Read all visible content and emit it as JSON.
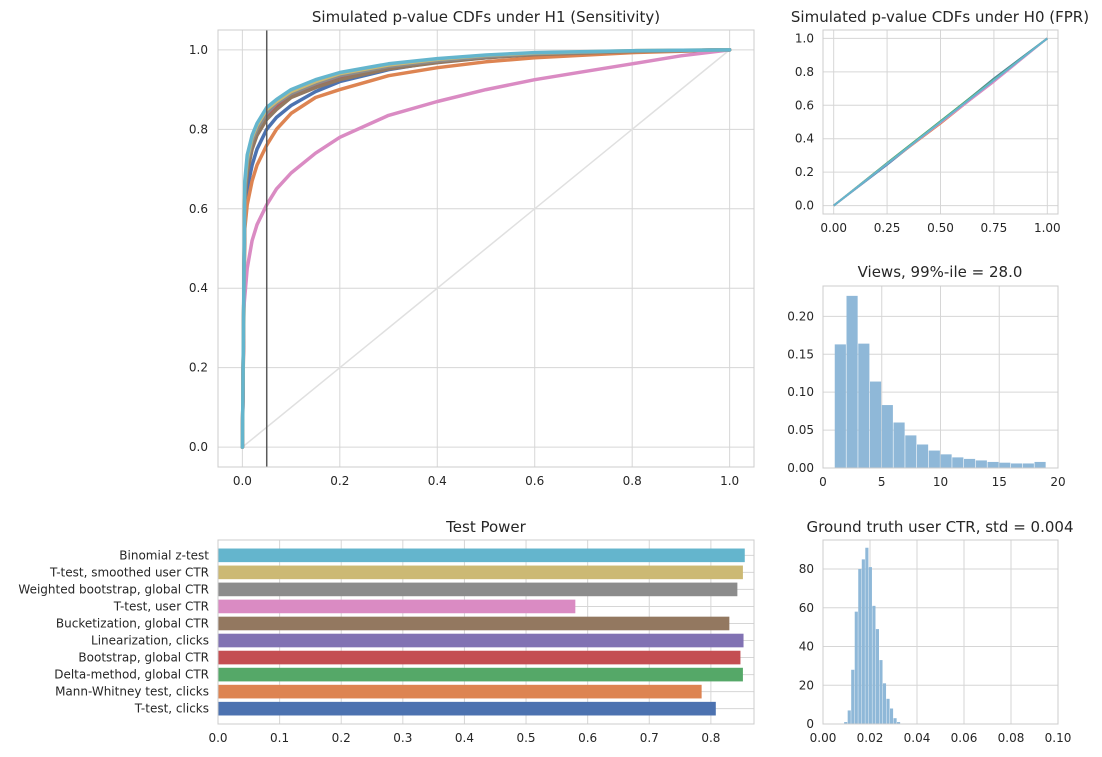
{
  "palette": [
    "#4c72b0",
    "#dd8452",
    "#55a868",
    "#c44e52",
    "#8172b3",
    "#937860",
    "#da8bc3",
    "#8c8c8c",
    "#ccb974",
    "#64b5cd"
  ],
  "chart_data": [
    {
      "type": "line",
      "title": "Simulated p-value CDFs under H1 (Sensitivity)",
      "xlim": [
        -0.05,
        1.05
      ],
      "ylim": [
        -0.05,
        1.05
      ],
      "xticks": [
        "0.0",
        "0.2",
        "0.4",
        "0.6",
        "0.8",
        "1.0"
      ],
      "yticks": [
        "0.0",
        "0.2",
        "0.4",
        "0.6",
        "0.8",
        "1.0"
      ],
      "grid": true,
      "vline_x": 0.05,
      "reference_diagonal": true,
      "series": [
        {
          "color": "#4c72b0",
          "points": [
            [
              0,
              0
            ],
            [
              0.005,
              0.58
            ],
            [
              0.01,
              0.65
            ],
            [
              0.02,
              0.71
            ],
            [
              0.03,
              0.75
            ],
            [
              0.05,
              0.8
            ],
            [
              0.07,
              0.83
            ],
            [
              0.1,
              0.86
            ],
            [
              0.15,
              0.895
            ],
            [
              0.2,
              0.92
            ],
            [
              0.3,
              0.95
            ],
            [
              0.4,
              0.97
            ],
            [
              0.5,
              0.98
            ],
            [
              0.6,
              0.99
            ],
            [
              0.8,
              0.997
            ],
            [
              1.0,
              1.0
            ]
          ]
        },
        {
          "color": "#dd8452",
          "points": [
            [
              0,
              0
            ],
            [
              0.005,
              0.55
            ],
            [
              0.01,
              0.61
            ],
            [
              0.02,
              0.67
            ],
            [
              0.03,
              0.71
            ],
            [
              0.05,
              0.76
            ],
            [
              0.07,
              0.8
            ],
            [
              0.1,
              0.84
            ],
            [
              0.15,
              0.88
            ],
            [
              0.2,
              0.9
            ],
            [
              0.3,
              0.935
            ],
            [
              0.4,
              0.955
            ],
            [
              0.5,
              0.97
            ],
            [
              0.6,
              0.98
            ],
            [
              0.8,
              0.993
            ],
            [
              1.0,
              1.0
            ]
          ]
        },
        {
          "color": "#55a868",
          "points": [
            [
              0,
              0
            ],
            [
              0.005,
              0.65
            ],
            [
              0.01,
              0.72
            ],
            [
              0.02,
              0.77
            ],
            [
              0.03,
              0.8
            ],
            [
              0.05,
              0.84
            ],
            [
              0.07,
              0.865
            ],
            [
              0.1,
              0.89
            ],
            [
              0.15,
              0.915
            ],
            [
              0.2,
              0.935
            ],
            [
              0.3,
              0.96
            ],
            [
              0.4,
              0.975
            ],
            [
              0.5,
              0.985
            ],
            [
              0.6,
              0.99
            ],
            [
              0.8,
              0.997
            ],
            [
              1.0,
              1.0
            ]
          ]
        },
        {
          "color": "#c44e52",
          "points": [
            [
              0,
              0
            ],
            [
              0.005,
              0.64
            ],
            [
              0.01,
              0.71
            ],
            [
              0.02,
              0.76
            ],
            [
              0.03,
              0.795
            ],
            [
              0.05,
              0.835
            ],
            [
              0.07,
              0.86
            ],
            [
              0.1,
              0.885
            ],
            [
              0.15,
              0.91
            ],
            [
              0.2,
              0.93
            ],
            [
              0.3,
              0.955
            ],
            [
              0.4,
              0.97
            ],
            [
              0.5,
              0.982
            ],
            [
              0.6,
              0.99
            ],
            [
              0.8,
              0.997
            ],
            [
              1.0,
              1.0
            ]
          ]
        },
        {
          "color": "#8172b3",
          "points": [
            [
              0,
              0
            ],
            [
              0.005,
              0.64
            ],
            [
              0.01,
              0.71
            ],
            [
              0.02,
              0.77
            ],
            [
              0.03,
              0.8
            ],
            [
              0.05,
              0.84
            ],
            [
              0.07,
              0.865
            ],
            [
              0.1,
              0.89
            ],
            [
              0.15,
              0.915
            ],
            [
              0.2,
              0.935
            ],
            [
              0.3,
              0.96
            ],
            [
              0.4,
              0.975
            ],
            [
              0.5,
              0.985
            ],
            [
              0.6,
              0.99
            ],
            [
              0.8,
              0.997
            ],
            [
              1.0,
              1.0
            ]
          ]
        },
        {
          "color": "#937860",
          "points": [
            [
              0,
              0
            ],
            [
              0.005,
              0.62
            ],
            [
              0.01,
              0.69
            ],
            [
              0.02,
              0.75
            ],
            [
              0.03,
              0.785
            ],
            [
              0.05,
              0.825
            ],
            [
              0.07,
              0.85
            ],
            [
              0.1,
              0.88
            ],
            [
              0.15,
              0.905
            ],
            [
              0.2,
              0.925
            ],
            [
              0.3,
              0.952
            ],
            [
              0.4,
              0.968
            ],
            [
              0.5,
              0.98
            ],
            [
              0.6,
              0.988
            ],
            [
              0.8,
              0.996
            ],
            [
              1.0,
              1.0
            ]
          ]
        },
        {
          "color": "#da8bc3",
          "points": [
            [
              0,
              0
            ],
            [
              0.003,
              0.35
            ],
            [
              0.01,
              0.45
            ],
            [
              0.02,
              0.52
            ],
            [
              0.03,
              0.56
            ],
            [
              0.05,
              0.61
            ],
            [
              0.07,
              0.65
            ],
            [
              0.1,
              0.69
            ],
            [
              0.15,
              0.74
            ],
            [
              0.2,
              0.78
            ],
            [
              0.3,
              0.835
            ],
            [
              0.4,
              0.87
            ],
            [
              0.5,
              0.9
            ],
            [
              0.6,
              0.925
            ],
            [
              0.7,
              0.945
            ],
            [
              0.8,
              0.965
            ],
            [
              0.9,
              0.985
            ],
            [
              1.0,
              1.0
            ]
          ]
        },
        {
          "color": "#8c8c8c",
          "points": [
            [
              0,
              0
            ],
            [
              0.005,
              0.64
            ],
            [
              0.01,
              0.715
            ],
            [
              0.02,
              0.77
            ],
            [
              0.03,
              0.8
            ],
            [
              0.05,
              0.84
            ],
            [
              0.07,
              0.865
            ],
            [
              0.1,
              0.89
            ],
            [
              0.15,
              0.915
            ],
            [
              0.2,
              0.935
            ],
            [
              0.3,
              0.958
            ],
            [
              0.4,
              0.972
            ],
            [
              0.5,
              0.983
            ],
            [
              0.6,
              0.99
            ],
            [
              0.8,
              0.997
            ],
            [
              1.0,
              1.0
            ]
          ]
        },
        {
          "color": "#ccb974",
          "points": [
            [
              0,
              0
            ],
            [
              0.005,
              0.66
            ],
            [
              0.01,
              0.725
            ],
            [
              0.02,
              0.78
            ],
            [
              0.03,
              0.81
            ],
            [
              0.05,
              0.85
            ],
            [
              0.07,
              0.87
            ],
            [
              0.1,
              0.895
            ],
            [
              0.15,
              0.92
            ],
            [
              0.2,
              0.94
            ],
            [
              0.3,
              0.962
            ],
            [
              0.4,
              0.976
            ],
            [
              0.5,
              0.986
            ],
            [
              0.6,
              0.992
            ],
            [
              0.8,
              0.998
            ],
            [
              1.0,
              1.0
            ]
          ]
        },
        {
          "color": "#64b5cd",
          "points": [
            [
              0,
              0
            ],
            [
              0.005,
              0.67
            ],
            [
              0.01,
              0.735
            ],
            [
              0.02,
              0.785
            ],
            [
              0.03,
              0.815
            ],
            [
              0.05,
              0.855
            ],
            [
              0.07,
              0.875
            ],
            [
              0.1,
              0.9
            ],
            [
              0.15,
              0.925
            ],
            [
              0.2,
              0.943
            ],
            [
              0.3,
              0.965
            ],
            [
              0.4,
              0.978
            ],
            [
              0.5,
              0.987
            ],
            [
              0.6,
              0.993
            ],
            [
              0.8,
              0.998
            ],
            [
              1.0,
              1.0
            ]
          ]
        }
      ]
    },
    {
      "type": "line",
      "title": "Simulated p-value CDFs under H0 (FPR)",
      "xlim": [
        -0.05,
        1.05
      ],
      "ylim": [
        -0.05,
        1.05
      ],
      "xticks": [
        "0.00",
        "0.25",
        "0.50",
        "0.75",
        "1.00"
      ],
      "yticks": [
        "0.0",
        "0.2",
        "0.4",
        "0.6",
        "0.8",
        "1.0"
      ],
      "grid": true,
      "series": [
        {
          "color": "#4c72b0",
          "points": [
            [
              0,
              0
            ],
            [
              0.25,
              0.245
            ],
            [
              0.5,
              0.5
            ],
            [
              0.75,
              0.76
            ],
            [
              1,
              1
            ]
          ]
        },
        {
          "color": "#dd8452",
          "points": [
            [
              0,
              0
            ],
            [
              0.25,
              0.25
            ],
            [
              0.5,
              0.49
            ],
            [
              0.75,
              0.745
            ],
            [
              1,
              1
            ]
          ]
        },
        {
          "color": "#55a868",
          "points": [
            [
              0,
              0
            ],
            [
              0.25,
              0.255
            ],
            [
              0.5,
              0.505
            ],
            [
              0.75,
              0.755
            ],
            [
              1,
              1
            ]
          ]
        },
        {
          "color": "#da8bc3",
          "points": [
            [
              0,
              0
            ],
            [
              0.25,
              0.25
            ],
            [
              0.5,
              0.495
            ],
            [
              0.75,
              0.74
            ],
            [
              1,
              1
            ]
          ]
        },
        {
          "color": "#64b5cd",
          "points": [
            [
              0,
              0
            ],
            [
              0.25,
              0.25
            ],
            [
              0.5,
              0.5
            ],
            [
              0.75,
              0.75
            ],
            [
              1,
              1
            ]
          ]
        }
      ]
    },
    {
      "type": "bar",
      "title": "Views, 99%-ile = 28.0",
      "xlim": [
        0,
        20
      ],
      "ylim": [
        0,
        0.24
      ],
      "xticks": [
        "0",
        "5",
        "10",
        "15",
        "20"
      ],
      "yticks": [
        "0.00",
        "0.05",
        "0.10",
        "0.15",
        "0.20"
      ],
      "grid": true,
      "bar_color": "#8fb8d8",
      "bins": [
        {
          "x0": 1,
          "x1": 2,
          "value": 0.163
        },
        {
          "x0": 2,
          "x1": 3,
          "value": 0.227
        },
        {
          "x0": 3,
          "x1": 4,
          "value": 0.164
        },
        {
          "x0": 4,
          "x1": 5,
          "value": 0.114
        },
        {
          "x0": 5,
          "x1": 6,
          "value": 0.083
        },
        {
          "x0": 6,
          "x1": 7,
          "value": 0.06
        },
        {
          "x0": 7,
          "x1": 8,
          "value": 0.043
        },
        {
          "x0": 8,
          "x1": 9,
          "value": 0.031
        },
        {
          "x0": 9,
          "x1": 10,
          "value": 0.023
        },
        {
          "x0": 10,
          "x1": 11,
          "value": 0.018
        },
        {
          "x0": 11,
          "x1": 12,
          "value": 0.014
        },
        {
          "x0": 12,
          "x1": 13,
          "value": 0.012
        },
        {
          "x0": 13,
          "x1": 14,
          "value": 0.01
        },
        {
          "x0": 14,
          "x1": 15,
          "value": 0.008
        },
        {
          "x0": 15,
          "x1": 16,
          "value": 0.007
        },
        {
          "x0": 16,
          "x1": 17,
          "value": 0.006
        },
        {
          "x0": 17,
          "x1": 18,
          "value": 0.006
        },
        {
          "x0": 18,
          "x1": 19,
          "value": 0.008
        }
      ]
    },
    {
      "type": "bar",
      "orientation": "horizontal",
      "title": "Test Power",
      "xlim": [
        0,
        0.87
      ],
      "xticks": [
        "0.0",
        "0.1",
        "0.2",
        "0.3",
        "0.4",
        "0.5",
        "0.6",
        "0.7",
        "0.8"
      ],
      "grid": true,
      "categories": [
        "Binomial z-test",
        "T-test, smoothed user CTR",
        "Weighted bootstrap, global CTR",
        "T-test, user CTR",
        "Bucketization, global CTR",
        "Linearization, clicks",
        "Bootstrap, global CTR",
        "Delta-method, global CTR",
        "Mann-Whitney test, clicks",
        "T-test, clicks"
      ],
      "values": [
        0.855,
        0.852,
        0.843,
        0.58,
        0.83,
        0.853,
        0.848,
        0.852,
        0.785,
        0.808
      ],
      "colors": [
        "#64b5cd",
        "#ccb974",
        "#8c8c8c",
        "#da8bc3",
        "#937860",
        "#8172b3",
        "#c44e52",
        "#55a868",
        "#dd8452",
        "#4c72b0"
      ]
    },
    {
      "type": "bar",
      "title": "Ground truth user CTR, std = 0.004",
      "xlim": [
        0,
        0.1
      ],
      "ylim": [
        0,
        95
      ],
      "xticks": [
        "0.00",
        "0.02",
        "0.04",
        "0.06",
        "0.08",
        "0.10"
      ],
      "yticks": [
        "0",
        "20",
        "40",
        "60",
        "80"
      ],
      "grid": true,
      "bar_color": "#8fb8d8",
      "bins": [
        {
          "x0": 0.009,
          "x1": 0.0105,
          "value": 1
        },
        {
          "x0": 0.0105,
          "x1": 0.012,
          "value": 7
        },
        {
          "x0": 0.012,
          "x1": 0.0135,
          "value": 28
        },
        {
          "x0": 0.0135,
          "x1": 0.015,
          "value": 58
        },
        {
          "x0": 0.015,
          "x1": 0.0165,
          "value": 80
        },
        {
          "x0": 0.0165,
          "x1": 0.018,
          "value": 85
        },
        {
          "x0": 0.018,
          "x1": 0.0195,
          "value": 91
        },
        {
          "x0": 0.0195,
          "x1": 0.021,
          "value": 81
        },
        {
          "x0": 0.021,
          "x1": 0.0225,
          "value": 61
        },
        {
          "x0": 0.0225,
          "x1": 0.024,
          "value": 49
        },
        {
          "x0": 0.024,
          "x1": 0.0255,
          "value": 33
        },
        {
          "x0": 0.0255,
          "x1": 0.027,
          "value": 21
        },
        {
          "x0": 0.027,
          "x1": 0.0285,
          "value": 13
        },
        {
          "x0": 0.0285,
          "x1": 0.03,
          "value": 8
        },
        {
          "x0": 0.03,
          "x1": 0.0315,
          "value": 3
        },
        {
          "x0": 0.0315,
          "x1": 0.033,
          "value": 1
        }
      ]
    }
  ]
}
